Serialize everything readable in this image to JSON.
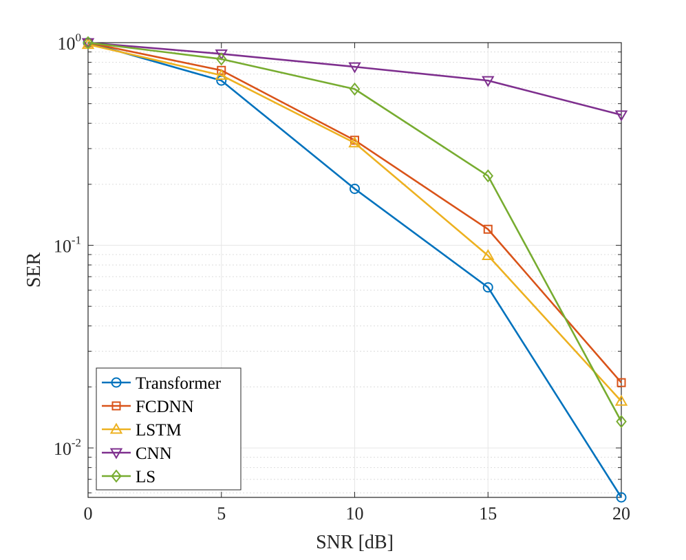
{
  "chart_data": {
    "type": "line",
    "title": "",
    "xlabel": "SNR [dB]",
    "ylabel": "SER",
    "xscale": "linear",
    "yscale": "log",
    "xlim": [
      0,
      20
    ],
    "ylim": [
      0.0057,
      1.0
    ],
    "grid": true,
    "legend_location": "bottom-left",
    "x": [
      0,
      5,
      10,
      15,
      20
    ],
    "xticks": [
      "0",
      "5",
      "10",
      "15",
      "20"
    ],
    "yticks": [
      {
        "value": 1,
        "base": "10",
        "exp": "0"
      },
      {
        "value": 0.1,
        "base": "10",
        "exp": "-1"
      },
      {
        "value": 0.01,
        "base": "10",
        "exp": "-2"
      }
    ],
    "series": [
      {
        "name": "Transformer",
        "color": "#0072BD",
        "marker": "circle",
        "values": [
          1.0,
          0.65,
          0.19,
          0.062,
          0.0057
        ]
      },
      {
        "name": "FCDNN",
        "color": "#D95319",
        "marker": "square",
        "values": [
          1.0,
          0.73,
          0.33,
          0.12,
          0.021
        ]
      },
      {
        "name": "LSTM",
        "color": "#EDB120",
        "marker": "triangle-up",
        "values": [
          0.98,
          0.69,
          0.32,
          0.089,
          0.017
        ]
      },
      {
        "name": "CNN",
        "color": "#7E2F8E",
        "marker": "triangle-down",
        "values": [
          1.0,
          0.88,
          0.76,
          0.65,
          0.44
        ]
      },
      {
        "name": "LS",
        "color": "#77AC30",
        "marker": "diamond",
        "values": [
          1.0,
          0.83,
          0.59,
          0.22,
          0.0135
        ]
      }
    ]
  }
}
